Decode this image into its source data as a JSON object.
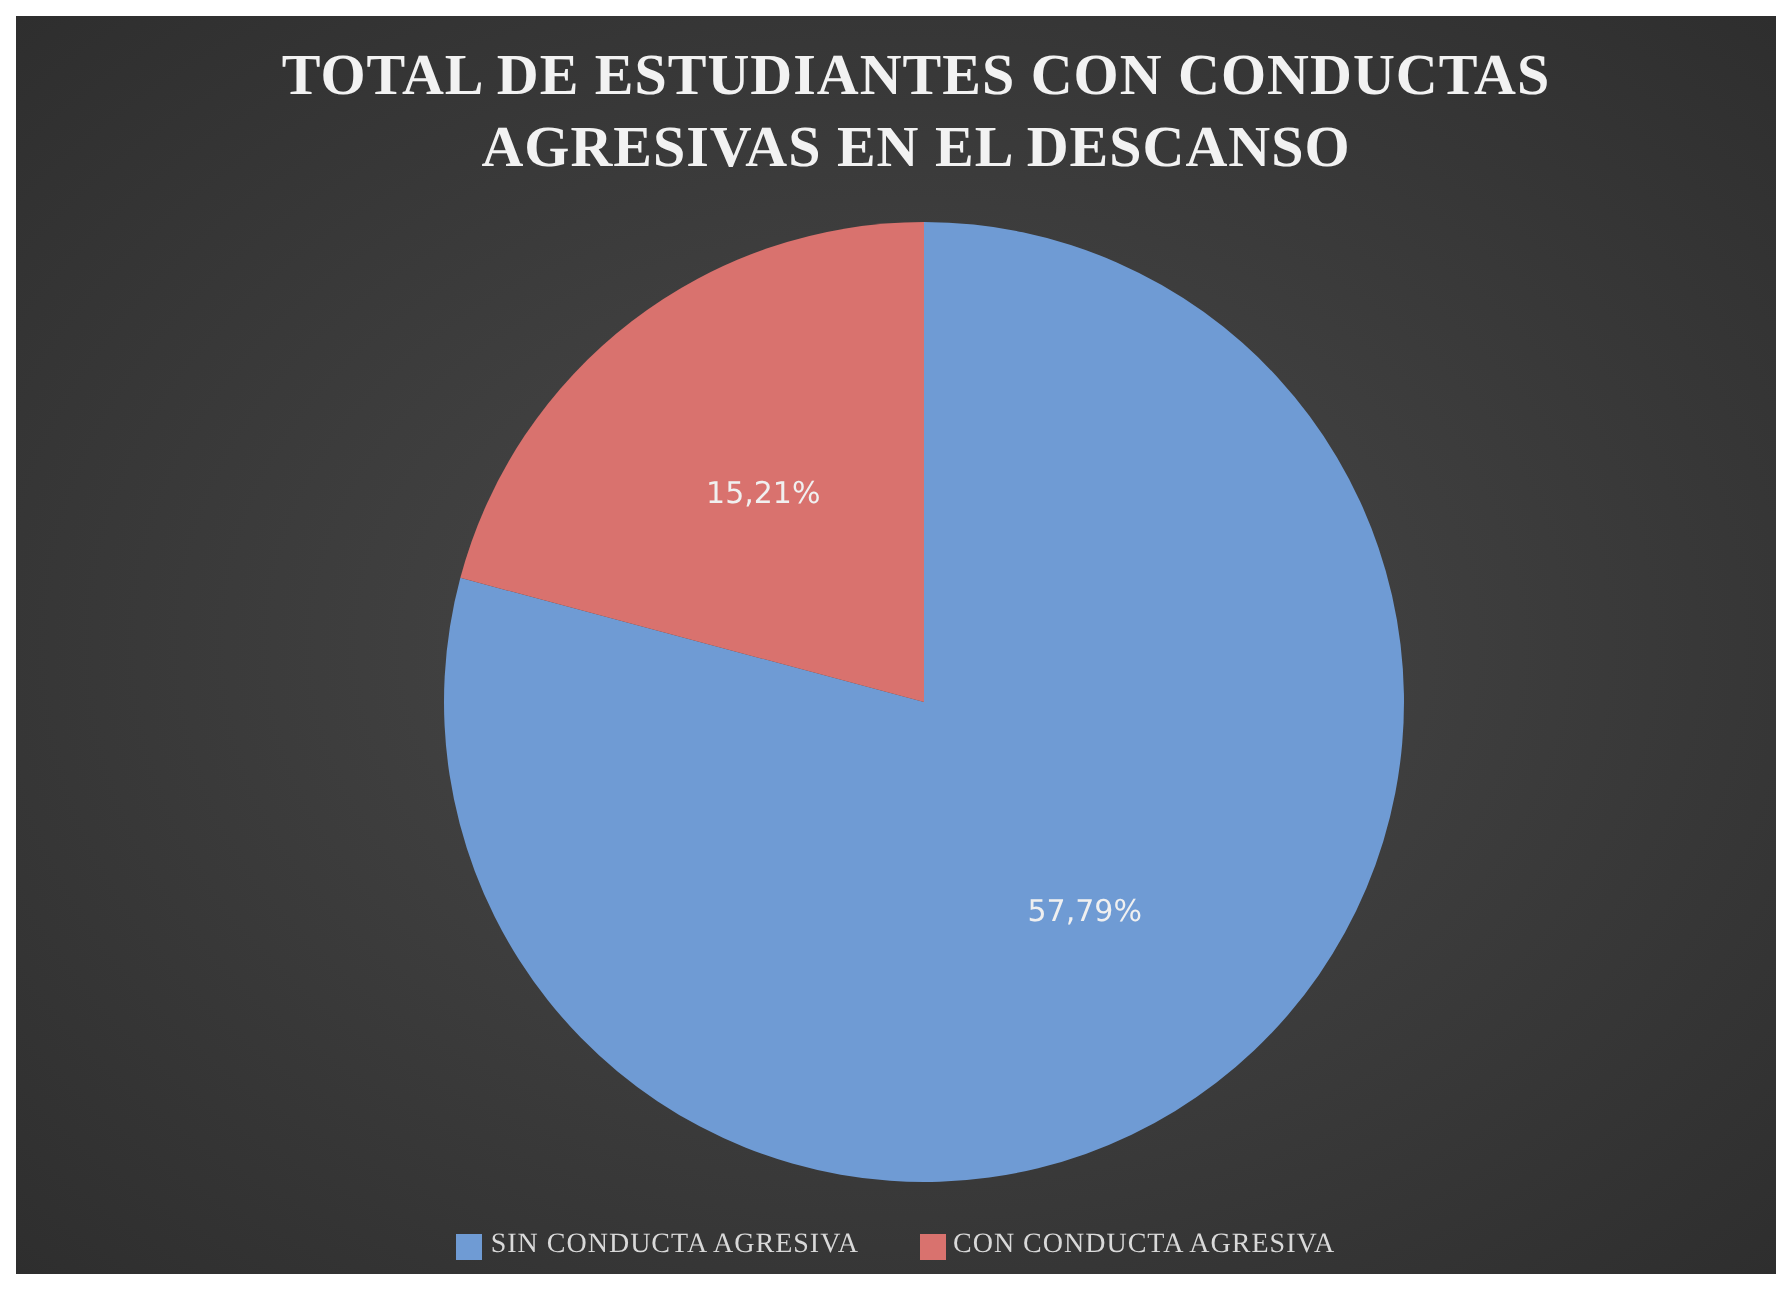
{
  "chart_data": {
    "type": "pie",
    "title": "TOTAL DE ESTUDIANTES CON CONDUCTAS AGRESIVAS EN EL DESCANSO",
    "categories": [
      "SIN CONDUCTA AGRESIVA",
      "CON CONDUCTA AGRESIVA"
    ],
    "values": [
      57.79,
      15.21
    ],
    "value_labels": [
      "57,79%",
      "15,21%"
    ],
    "colors": [
      "#6f9bd4",
      "#d9726e"
    ],
    "legend": "bottom"
  }
}
